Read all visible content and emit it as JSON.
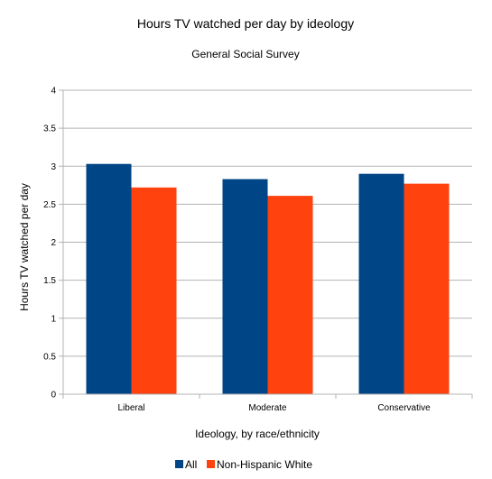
{
  "chart_data": {
    "type": "bar",
    "title": "Hours TV watched per day by ideology",
    "subtitle": "General Social Survey",
    "xlabel": "Ideology, by race/ethnicity",
    "ylabel": "Hours TV watched per day",
    "categories": [
      "Liberal",
      "Moderate",
      "Conservative"
    ],
    "series": [
      {
        "name": "All",
        "values": [
          3.03,
          2.83,
          2.9
        ],
        "color": "#004586"
      },
      {
        "name": "Non-Hispanic White",
        "values": [
          2.72,
          2.61,
          2.77
        ],
        "color": "#ff420e"
      }
    ],
    "ylim": [
      0,
      4
    ],
    "yticks": [
      "0",
      "0.5",
      "1",
      "1.5",
      "2",
      "2.5",
      "3",
      "3.5",
      "4"
    ],
    "grid": true,
    "legend_position": "bottom"
  }
}
